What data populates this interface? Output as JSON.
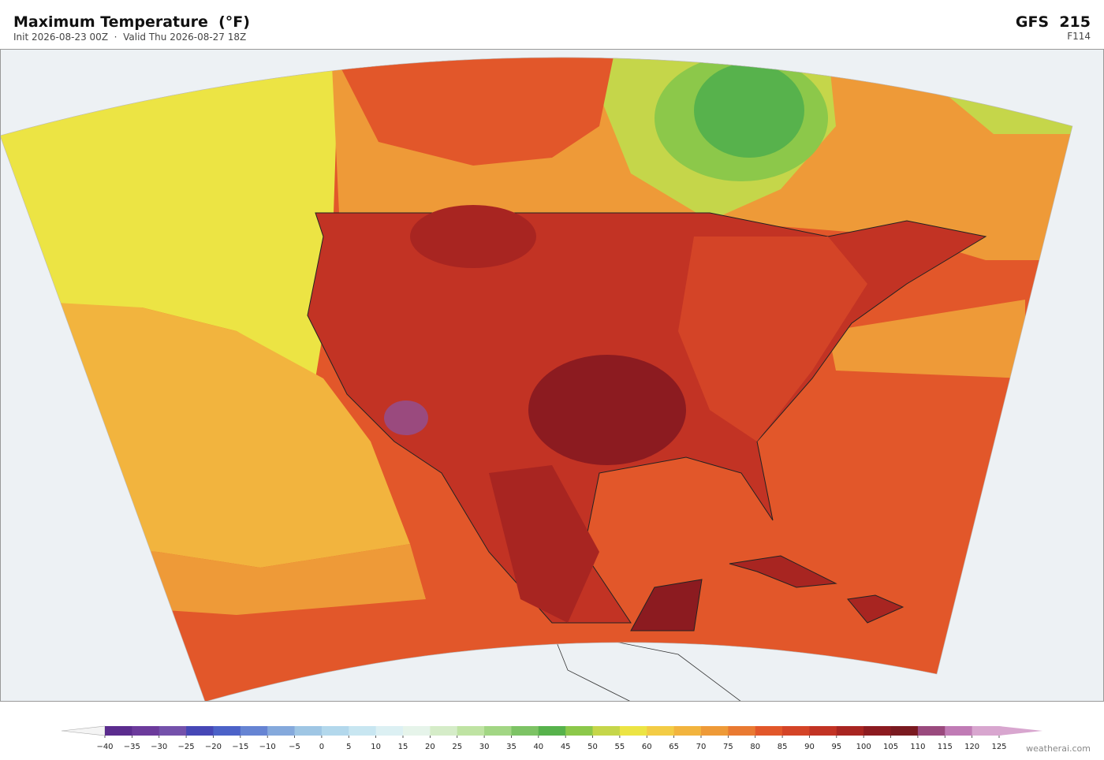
{
  "header": {
    "title": "Maximum Temperature  (°F)",
    "subtitle": "Init 2026-08-23 00Z  ·  Valid Thu 2026-08-27 18Z",
    "model": "GFS  215",
    "forecast_hour": "F114"
  },
  "colorbar": {
    "ticks": [
      "−40",
      "−35",
      "−30",
      "−25",
      "−20",
      "−15",
      "−10",
      "−5",
      "0",
      "5",
      "10",
      "15",
      "20",
      "25",
      "30",
      "35",
      "40",
      "45",
      "50",
      "55",
      "60",
      "65",
      "70",
      "75",
      "80",
      "85",
      "90",
      "95",
      "100",
      "105",
      "110",
      "115",
      "120",
      "125"
    ],
    "colors": [
      "#5b2c8e",
      "#6c3b9c",
      "#7451ab",
      "#4647b6",
      "#4c62c8",
      "#6684d3",
      "#85a9dc",
      "#9fc6e4",
      "#b3d8ec",
      "#c8e6f1",
      "#dcf0f3",
      "#e6f4ea",
      "#d5ecc8",
      "#bfe3a3",
      "#a2d684",
      "#7dc365",
      "#57b24c",
      "#8cc84a",
      "#c5d64a",
      "#ece444",
      "#f3cc45",
      "#f2b43e",
      "#ee9a38",
      "#e97a32",
      "#e2572a",
      "#d44427",
      "#c23324",
      "#a82521",
      "#8c1b20",
      "#7a1a20",
      "#9a4a7e",
      "#c07bb5",
      "#d8a6cf"
    ],
    "under_color": "#f4f4f4",
    "over_color": "#d8a6cf"
  },
  "footer": {
    "credit": "weatherai.com"
  }
}
